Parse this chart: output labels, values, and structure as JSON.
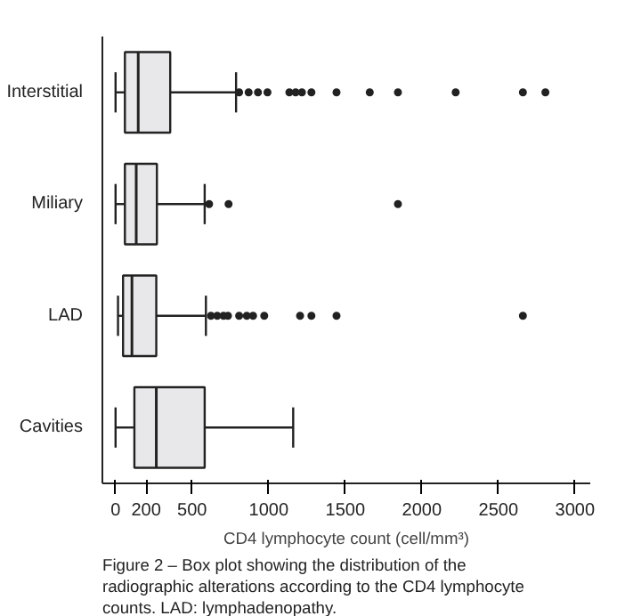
{
  "chart_data": {
    "type": "box",
    "orientation": "horizontal",
    "categories": [
      "Interstitial",
      "Miliary",
      "LAD",
      "Cavities"
    ],
    "boxes": [
      {
        "low": 0,
        "q1": 61,
        "median": 148,
        "q3": 357,
        "high": 787,
        "outliers": [
          807,
          869,
          930,
          992,
          1135,
          1176,
          1217,
          1279,
          1443,
          1660,
          1844,
          2221,
          2660,
          2807
        ]
      },
      {
        "low": 0,
        "q1": 61,
        "median": 135,
        "q3": 270,
        "high": 582,
        "outliers": [
          611,
          738,
          1844
        ]
      },
      {
        "low": 16,
        "q1": 49,
        "median": 107,
        "q3": 266,
        "high": 590,
        "outliers": [
          623,
          664,
          705,
          734,
          807,
          857,
          898,
          971,
          1205,
          1279,
          1443,
          2660
        ]
      },
      {
        "low": 0,
        "q1": 123,
        "median": 266,
        "q3": 582,
        "high": 1160
      }
    ],
    "color": "#e8e8ea",
    "xlabel": "CD4 lymphocyte count (cell/mm³)",
    "xlim": [
      -86,
      3100
    ],
    "xticks": [
      0,
      200,
      500,
      1000,
      1500,
      2000,
      2500,
      3000
    ],
    "grid": false,
    "annotations": [
      "Figure 2 – Box plot showing the distribution of the",
      "radiographic alterations according to the CD4 lymphocyte",
      "counts. LAD: lymphadenopathy."
    ]
  }
}
